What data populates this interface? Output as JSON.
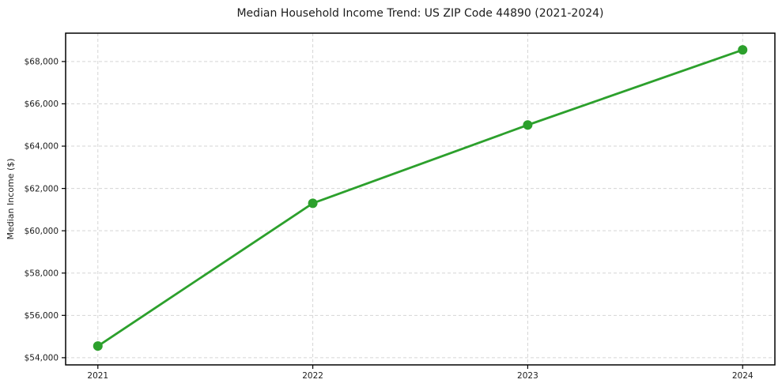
{
  "chart_data": {
    "type": "line",
    "title": "Median Household Income Trend: US ZIP Code 44890 (2021-2024)",
    "xlabel": "",
    "ylabel": "Median Income ($)",
    "x": [
      2021,
      2022,
      2023,
      2024
    ],
    "values": [
      54550,
      61300,
      65000,
      68550
    ],
    "xtick_labels": [
      "2021",
      "2022",
      "2023",
      "2024"
    ],
    "yticks": [
      54000,
      56000,
      58000,
      60000,
      62000,
      64000,
      66000,
      68000
    ],
    "ytick_labels": [
      "$54,000",
      "$56,000",
      "$58,000",
      "$60,000",
      "$62,000",
      "$64,000",
      "$66,000",
      "$68,000"
    ],
    "xlim": [
      2020.85,
      2024.15
    ],
    "ylim": [
      53660,
      69340
    ],
    "grid": true,
    "grid_style": "dashed",
    "legend": false,
    "marker": "circle",
    "line_color": "#2ca02c",
    "grid_color": "#d5d5d5",
    "axis_color": "#000000",
    "text_color": "#1c1c1c",
    "background_color": "#ffffff"
  }
}
